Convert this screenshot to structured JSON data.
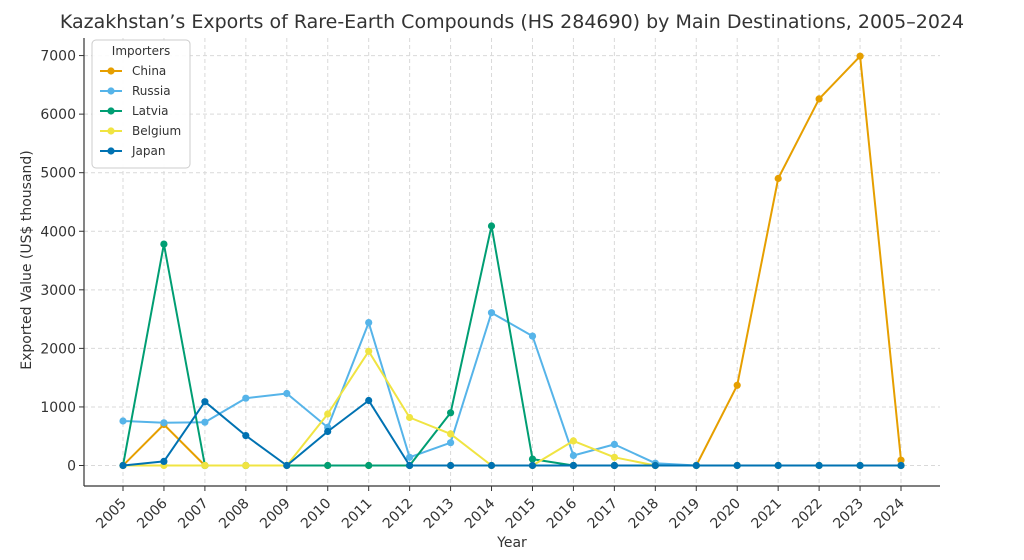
{
  "chart_data": {
    "type": "line",
    "title": "Kazakhstan’s Exports of Rare-Earth Compounds (HS 284690) by Main Destinations, 2005–2024",
    "xlabel": "Year",
    "ylabel": "Exported Value (US$ thousand)",
    "x": [
      "2005",
      "2006",
      "2007",
      "2008",
      "2009",
      "2010",
      "2011",
      "2012",
      "2013",
      "2014",
      "2015",
      "2016",
      "2017",
      "2018",
      "2019",
      "2020",
      "2021",
      "2022",
      "2023",
      "2024"
    ],
    "ylim": [
      -350,
      7300
    ],
    "yticks": [
      0,
      1000,
      2000,
      3000,
      4000,
      5000,
      6000,
      7000
    ],
    "grid": true,
    "legend": {
      "title": "Importers",
      "placement": "top-left"
    },
    "series": [
      {
        "name": "China",
        "color": "#E69F00",
        "values": [
          0,
          700,
          0,
          0,
          0,
          0,
          0,
          0,
          0,
          0,
          0,
          0,
          0,
          0,
          0,
          1370,
          4900,
          6260,
          6990,
          90
        ]
      },
      {
        "name": "Russia",
        "color": "#56B4E9",
        "values": [
          760,
          730,
          740,
          1150,
          1230,
          650,
          2440,
          140,
          390,
          2610,
          2210,
          170,
          360,
          40,
          0,
          0,
          0,
          0,
          0,
          0
        ]
      },
      {
        "name": "Latvia",
        "color": "#009E73",
        "values": [
          0,
          3780,
          0,
          0,
          0,
          0,
          0,
          0,
          900,
          4090,
          110,
          0,
          0,
          0,
          0,
          0,
          0,
          0,
          0,
          0
        ]
      },
      {
        "name": "Belgium",
        "color": "#F0E442",
        "values": [
          0,
          0,
          0,
          0,
          0,
          880,
          1950,
          820,
          540,
          0,
          0,
          420,
          140,
          0,
          0,
          0,
          0,
          0,
          0,
          0
        ]
      },
      {
        "name": "Japan",
        "color": "#0072B2",
        "values": [
          0,
          70,
          1090,
          510,
          0,
          580,
          1110,
          0,
          0,
          0,
          0,
          0,
          0,
          0,
          0,
          0,
          0,
          0,
          0,
          0
        ]
      }
    ]
  }
}
